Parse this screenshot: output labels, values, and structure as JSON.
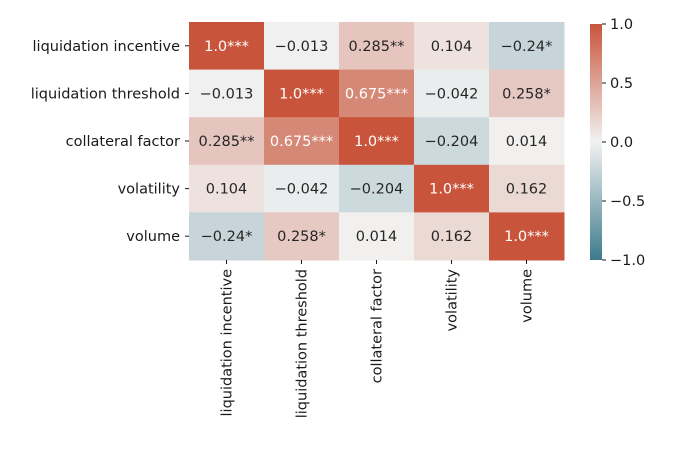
{
  "chart_data": {
    "type": "heatmap",
    "title": "",
    "xlabel": "",
    "ylabel": "",
    "rows": [
      "liquidation incentive",
      "liquidation threshold",
      "collateral factor",
      "volatility",
      "volume"
    ],
    "columns": [
      "liquidation incentive",
      "liquidation threshold",
      "collateral factor",
      "volatility",
      "volume"
    ],
    "values": [
      [
        1.0,
        -0.013,
        0.285,
        0.104,
        -0.24
      ],
      [
        -0.013,
        1.0,
        0.675,
        -0.042,
        0.258
      ],
      [
        0.285,
        0.675,
        1.0,
        -0.204,
        0.014
      ],
      [
        0.104,
        -0.042,
        -0.204,
        1.0,
        0.162
      ],
      [
        -0.24,
        0.258,
        0.014,
        0.162,
        1.0
      ]
    ],
    "annotations": [
      [
        "1.0***",
        "−0.013",
        "0.285**",
        "0.104",
        "−0.24*"
      ],
      [
        "−0.013",
        "1.0***",
        "0.675***",
        "−0.042",
        "0.258*"
      ],
      [
        "0.285**",
        "0.675***",
        "1.0***",
        "−0.204",
        "0.014"
      ],
      [
        "0.104",
        "−0.042",
        "−0.204",
        "1.0***",
        "0.162"
      ],
      [
        "−0.24*",
        "0.258*",
        "0.014",
        "0.162",
        "1.0***"
      ]
    ],
    "colorbar": {
      "vmin": -1.0,
      "vmax": 1.0,
      "ticks": [
        1.0,
        0.5,
        0.0,
        -0.5,
        -1.0
      ],
      "tick_labels": [
        "1.0",
        "0.5",
        "0.0",
        "−0.5",
        "−1.0"
      ]
    },
    "colormap": {
      "negative": "#3d7b8c",
      "center": "#f2f2f2",
      "positive": "#c8553b"
    }
  }
}
